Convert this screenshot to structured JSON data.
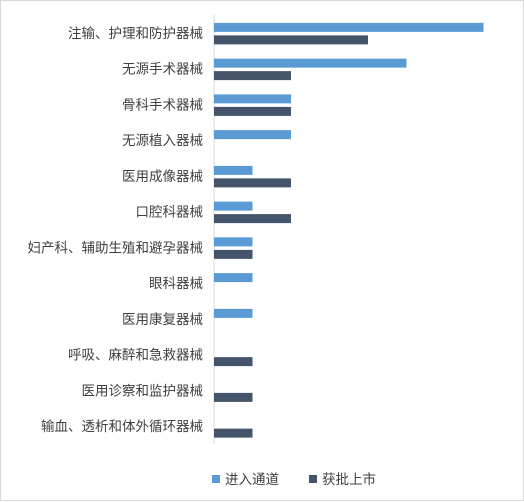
{
  "chart_data": {
    "type": "bar",
    "orientation": "horizontal",
    "categories": [
      "注输、护理和防护器械",
      "无源手术器械",
      "骨科手术器械",
      "无源植入器械",
      "医用成像器械",
      "口腔科器械",
      "妇产科、辅助生殖和避孕器械",
      "眼科器械",
      "医用康复器械",
      "呼吸、麻醉和急救器械",
      "医用诊察和监护器械",
      "输血、透析和体外循环器械"
    ],
    "series": [
      {
        "name": "进入通道",
        "color": "#5b9bd5",
        "values": [
          7,
          5,
          2,
          2,
          1,
          1,
          1,
          1,
          1,
          0,
          0,
          0
        ]
      },
      {
        "name": "获批上市",
        "color": "#44546a",
        "values": [
          4,
          2,
          2,
          0,
          2,
          2,
          1,
          0,
          0,
          1,
          1,
          1
        ]
      }
    ],
    "xlim": [
      0,
      7
    ],
    "grid": false,
    "legend_position": "bottom"
  }
}
